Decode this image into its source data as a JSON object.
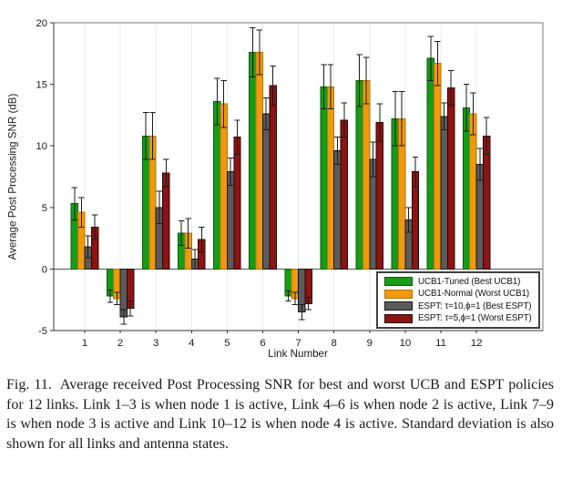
{
  "figure": {
    "caption": {
      "label": "Fig. 11.",
      "text": "Average received Post Processing SNR for best and worst UCB and ESPT policies for 12 links. Link 1–3 is when node 1 is active, Link 4–6 is when node 2 is active, Link 7–9 is when node 3 is active and Link 10–12 is when node 4 is active. Standard deviation is also shown for all links and antenna states."
    }
  },
  "chart_data": {
    "type": "bar",
    "title": "",
    "xlabel": "Link Number",
    "ylabel": "Average Post Processing SNR (dB)",
    "ylim": [
      -5,
      20
    ],
    "yticks": [
      -5,
      0,
      5,
      10,
      15,
      20
    ],
    "grid": "faint vertical gridline at each link position",
    "legend_position": "inside bottom-right",
    "error_bars": "plus-minus standard deviation with black caps",
    "categories": [
      "1",
      "2",
      "3",
      "4",
      "5",
      "6",
      "7",
      "8",
      "9",
      "10",
      "11",
      "12"
    ],
    "series": [
      {
        "name": "UCB1-Tuned (Best UCB1)",
        "color": "#189c18",
        "edge": "#0a5c0a",
        "values": [
          5.3,
          -2.2,
          10.8,
          2.9,
          13.6,
          17.6,
          -2.2,
          14.8,
          15.3,
          12.2,
          17.1,
          13.1
        ],
        "errors": [
          1.3,
          0.5,
          1.9,
          1.0,
          1.9,
          2.0,
          0.4,
          1.8,
          2.1,
          2.2,
          1.8,
          1.9
        ]
      },
      {
        "name": "UCB1-Normal (Worst UCB1)",
        "color": "#f0990f",
        "edge": "#b3720a",
        "values": [
          4.6,
          -2.4,
          10.8,
          2.9,
          13.4,
          17.6,
          -2.4,
          14.8,
          15.3,
          12.2,
          16.7,
          12.6
        ],
        "errors": [
          1.2,
          0.5,
          1.9,
          1.2,
          1.9,
          1.8,
          0.5,
          1.8,
          1.9,
          2.2,
          1.8,
          1.7
        ]
      },
      {
        "name": "ESPT: τ=10,ϕ=1 (Best ESPT)",
        "color": "#5b5b5b",
        "edge": "#161616",
        "values": [
          1.8,
          -3.9,
          5.0,
          0.8,
          7.9,
          12.6,
          -3.5,
          9.6,
          8.9,
          4.0,
          12.4,
          8.5
        ],
        "errors": [
          0.9,
          0.6,
          1.3,
          0.8,
          1.1,
          1.3,
          0.6,
          1.1,
          1.4,
          1.0,
          1.1,
          1.3
        ]
      },
      {
        "name": "ESPT: τ=5,ϕ=1 (Worst ESPT)",
        "color": "#8c1412",
        "edge": "#2b0504",
        "values": [
          3.4,
          -3.2,
          7.8,
          2.4,
          10.7,
          14.9,
          -2.8,
          12.1,
          11.9,
          7.9,
          14.7,
          10.8
        ],
        "errors": [
          1.0,
          0.6,
          1.1,
          1.0,
          1.4,
          1.6,
          0.5,
          1.4,
          1.5,
          1.2,
          1.4,
          1.5
        ]
      }
    ]
  }
}
